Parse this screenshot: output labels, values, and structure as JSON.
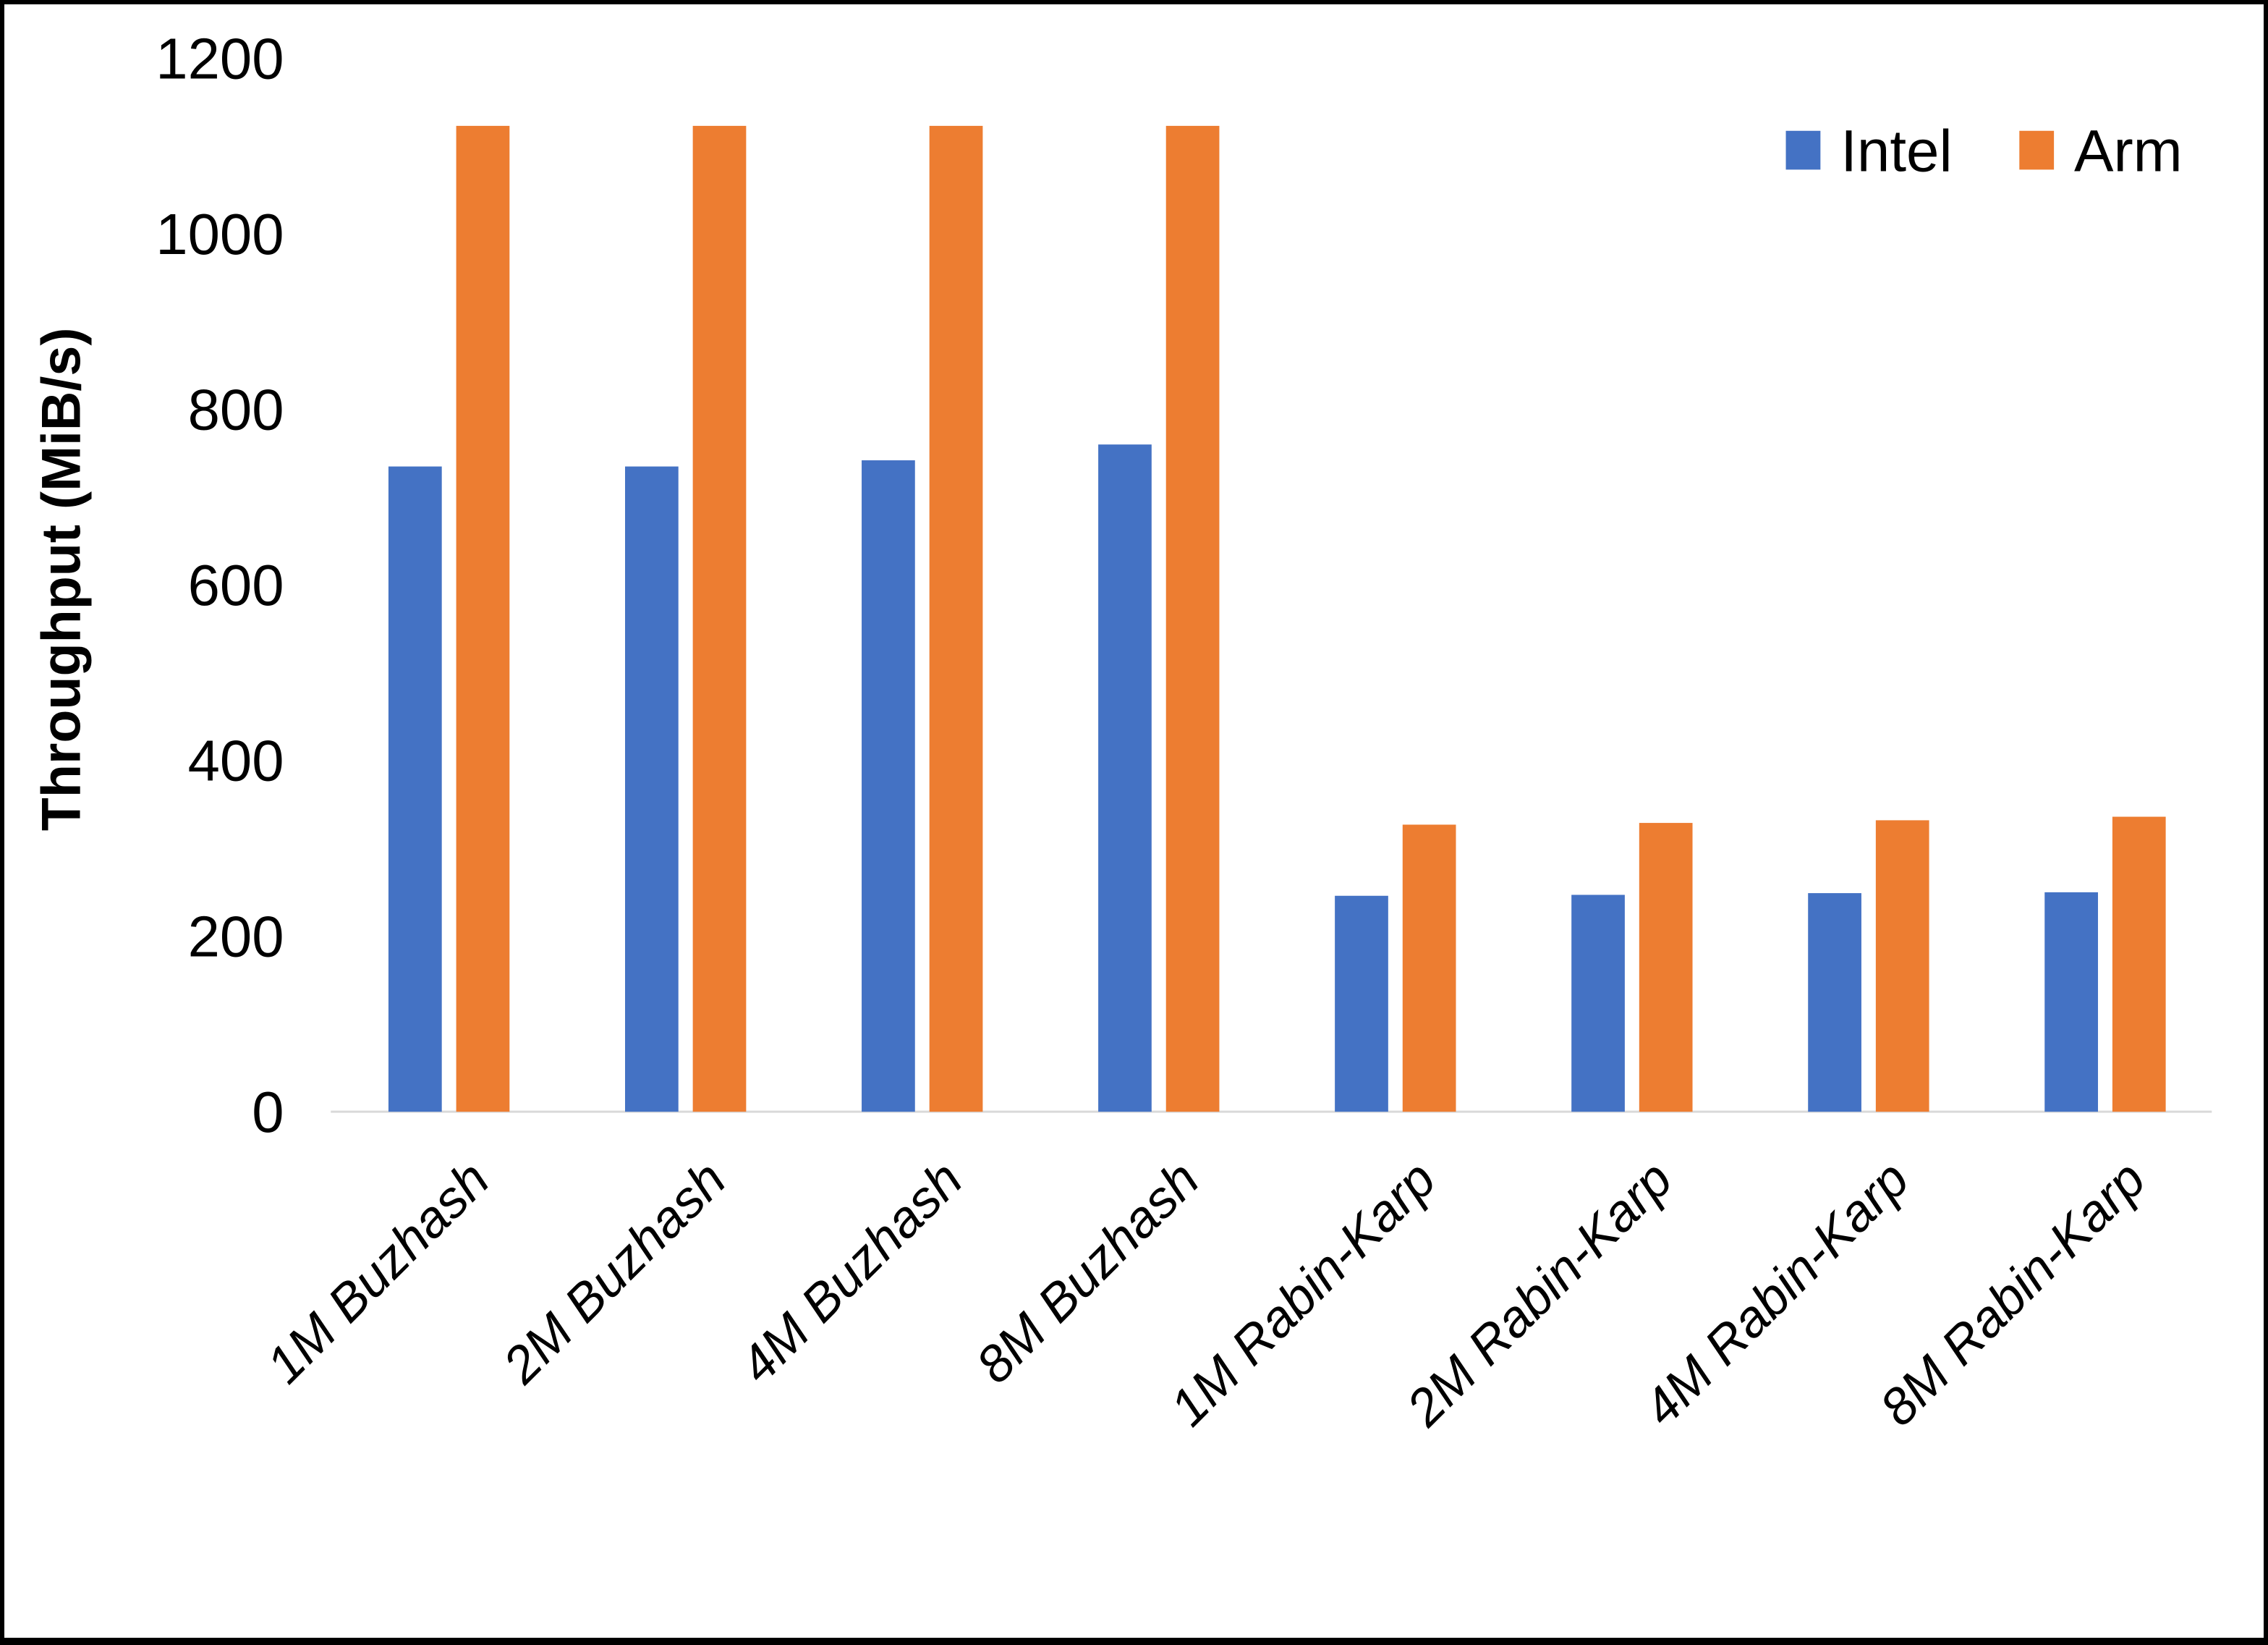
{
  "chart_data": {
    "type": "bar",
    "title": "",
    "xlabel": "",
    "ylabel": "Throughput (MiB/s)",
    "ylim": [
      0,
      1200
    ],
    "yticks": [
      0,
      200,
      400,
      600,
      800,
      1000,
      1200
    ],
    "grid": false,
    "legend_position": "top-right",
    "categories": [
      "1M Buzhash",
      "2M Buzhash",
      "4M Buzhash",
      "8M Buzhash",
      "1M Rabin-Karp",
      "2M Rabin-Karp",
      "4M Rabin-Karp",
      "8M Rabin-Karp"
    ],
    "series": [
      {
        "name": "Intel",
        "color": "#4472C4",
        "values": [
          735,
          735,
          742,
          760,
          246,
          247,
          249,
          250
        ]
      },
      {
        "name": "Arm",
        "color": "#ED7D31",
        "values": [
          1123,
          1123,
          1123,
          1123,
          327,
          329,
          332,
          336
        ]
      }
    ],
    "axis_line_color": "#D9D9D9",
    "text_color": "#000000"
  }
}
